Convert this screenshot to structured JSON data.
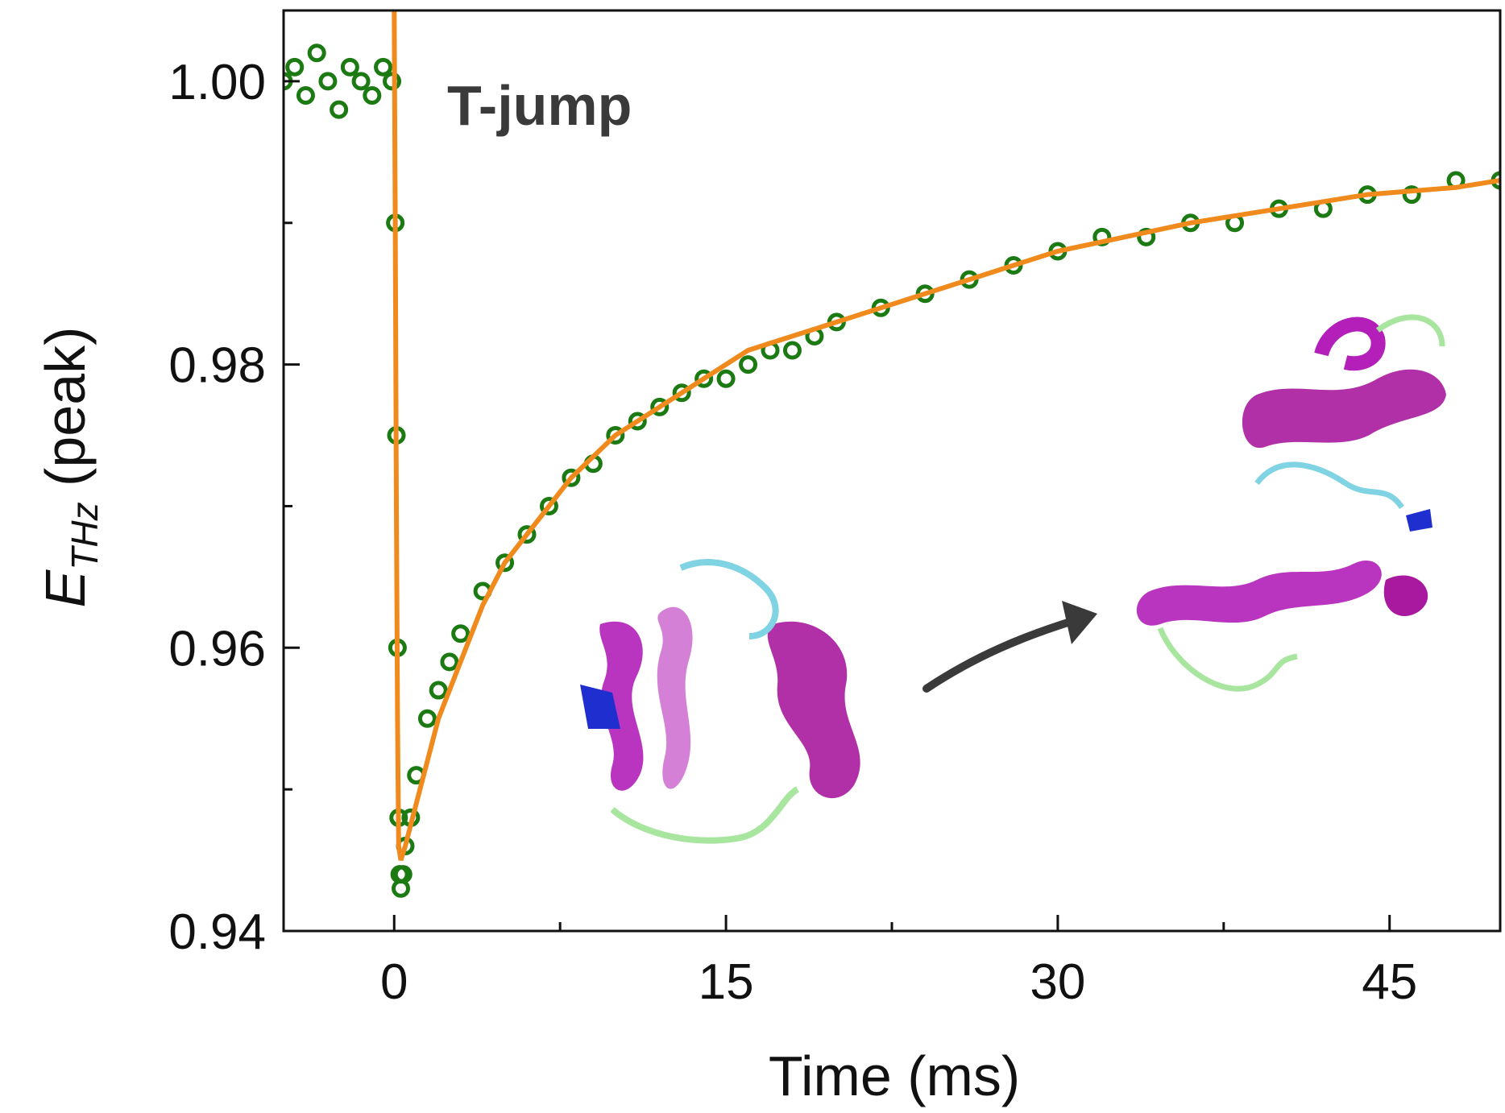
{
  "chart_data": {
    "type": "scatter",
    "title": "",
    "xlabel": "Time (ms)",
    "ylabel": {
      "main": "E",
      "subscript": "THz",
      "suffix": " (peak)"
    },
    "xlim": [
      -5,
      50
    ],
    "ylim": [
      0.94,
      1.005
    ],
    "x_ticks": [
      0,
      15,
      30,
      45
    ],
    "x_tick_labels": [
      "0",
      "15",
      "30",
      "45"
    ],
    "y_ticks": [
      0.94,
      0.96,
      0.98,
      1.0
    ],
    "y_tick_labels": [
      "0.94",
      "0.96",
      "0.98",
      "1.00"
    ],
    "annotation": "T-jump",
    "grid": false,
    "series": [
      {
        "kind": "data-points",
        "color": "#1c7a12",
        "x": [
          -5,
          -4.5,
          -4,
          -3.5,
          -3,
          -2.5,
          -2,
          -1.5,
          -1,
          -0.5,
          -0.1,
          0.05,
          0.1,
          0.15,
          0.2,
          0.25,
          0.3,
          0.4,
          0.5,
          0.75,
          1,
          1.5,
          2,
          2.5,
          3,
          4,
          5,
          6,
          7,
          8,
          9,
          10,
          11,
          12,
          13,
          14,
          15,
          16,
          17,
          18,
          19,
          20,
          22,
          24,
          26,
          28,
          30,
          32,
          34,
          36,
          38,
          40,
          42,
          44,
          46,
          48,
          50
        ],
        "y": [
          1.0,
          1.001,
          0.999,
          1.002,
          1.0,
          0.998,
          1.001,
          1.0,
          0.999,
          1.001,
          1.0,
          0.99,
          0.975,
          0.96,
          0.948,
          0.944,
          0.943,
          0.944,
          0.946,
          0.948,
          0.951,
          0.955,
          0.957,
          0.959,
          0.961,
          0.964,
          0.966,
          0.968,
          0.97,
          0.972,
          0.973,
          0.975,
          0.976,
          0.977,
          0.978,
          0.979,
          0.979,
          0.98,
          0.981,
          0.981,
          0.982,
          0.983,
          0.984,
          0.985,
          0.986,
          0.987,
          0.988,
          0.989,
          0.989,
          0.99,
          0.99,
          0.991,
          0.991,
          0.992,
          0.992,
          0.993,
          0.993
        ]
      },
      {
        "kind": "fit-line",
        "color": "#f08a1c",
        "x": [
          0.0,
          0.05,
          0.1,
          0.15,
          0.2,
          0.3,
          0.5,
          1,
          2,
          3,
          4,
          5,
          6,
          8,
          10,
          12,
          14,
          16,
          18,
          20,
          22,
          24,
          26,
          28,
          30,
          33,
          36,
          40,
          44,
          48,
          50
        ],
        "y": [
          1.005,
          0.99,
          0.97,
          0.955,
          0.946,
          0.945,
          0.946,
          0.949,
          0.955,
          0.959,
          0.963,
          0.966,
          0.968,
          0.972,
          0.975,
          0.977,
          0.979,
          0.981,
          0.982,
          0.983,
          0.984,
          0.985,
          0.986,
          0.987,
          0.988,
          0.989,
          0.99,
          0.991,
          0.992,
          0.9925,
          0.993
        ]
      }
    ]
  }
}
